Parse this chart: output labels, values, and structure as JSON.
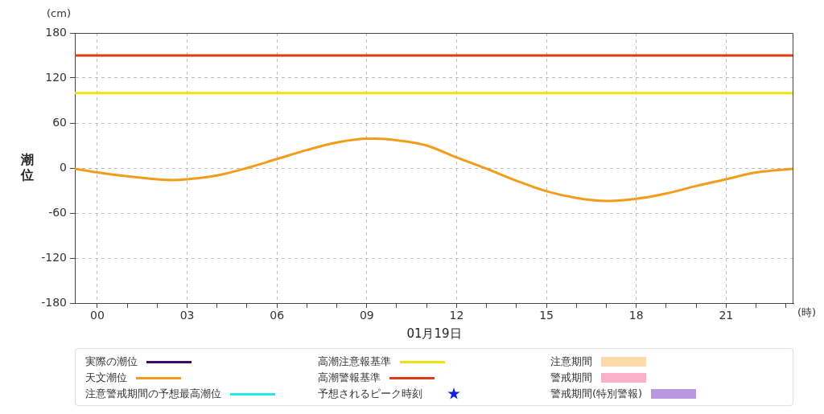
{
  "chart_data": {
    "type": "line",
    "ylabel": "潮位",
    "xlabel": "01月19日",
    "annotations": [
      "(cm)",
      "(時)"
    ],
    "x": [
      -0.75,
      0,
      1,
      2,
      2.5,
      3,
      4,
      5,
      6,
      7,
      8,
      9,
      9.3,
      10,
      11,
      12,
      13,
      14,
      15,
      16,
      17,
      18,
      19,
      20,
      21,
      22,
      23.25
    ],
    "xlim": [
      -0.75,
      23.25
    ],
    "xticks": [
      {
        "value": 0,
        "label": "00"
      },
      {
        "value": 1,
        "label": null
      },
      {
        "value": 2,
        "label": null
      },
      {
        "value": 3,
        "label": "03"
      },
      {
        "value": 4,
        "label": null
      },
      {
        "value": 5,
        "label": null
      },
      {
        "value": 6,
        "label": "06"
      },
      {
        "value": 7,
        "label": null
      },
      {
        "value": 8,
        "label": null
      },
      {
        "value": 9,
        "label": "09"
      },
      {
        "value": 10,
        "label": null
      },
      {
        "value": 11,
        "label": null
      },
      {
        "value": 12,
        "label": "12"
      },
      {
        "value": 13,
        "label": null
      },
      {
        "value": 14,
        "label": null
      },
      {
        "value": 15,
        "label": "15"
      },
      {
        "value": 16,
        "label": null
      },
      {
        "value": 17,
        "label": null
      },
      {
        "value": 18,
        "label": "18"
      },
      {
        "value": 19,
        "label": null
      },
      {
        "value": 20,
        "label": null
      },
      {
        "value": 21,
        "label": "21"
      },
      {
        "value": 22,
        "label": null
      },
      {
        "value": 23,
        "label": null
      }
    ],
    "ylim": [
      -180,
      180
    ],
    "yticks": [
      -180,
      -120,
      -60,
      0,
      60,
      120,
      180
    ],
    "grid": true,
    "legend": "bottom",
    "marker": "none",
    "series": [
      {
        "name": "実際の潮位",
        "color": "#3a0a6e",
        "values": [
          null,
          null,
          null,
          null,
          null,
          null,
          null,
          null,
          null,
          null,
          null,
          null,
          null,
          null,
          null,
          null,
          null,
          null,
          null,
          null,
          null,
          null,
          null,
          null,
          null,
          null,
          null
        ]
      },
      {
        "name": "天文潮位",
        "color": "#f39c1a",
        "values": [
          -1,
          -6,
          -11,
          -15,
          -16,
          -15,
          -10,
          0,
          12,
          24,
          34,
          39,
          39,
          37,
          30,
          14,
          -1,
          -17,
          -31,
          -40,
          -44,
          -41,
          -34,
          -24,
          -15,
          -6,
          -1
        ]
      },
      {
        "name": "注意警戒期間の予想最高潮位",
        "color": "#22e6f0",
        "values": [
          null,
          null,
          null,
          null,
          null,
          null,
          null,
          null,
          null,
          null,
          null,
          null,
          null,
          null,
          null,
          null,
          null,
          null,
          null,
          null,
          null,
          null,
          null,
          null,
          null,
          null,
          null
        ]
      },
      {
        "name": "高潮注意報基準",
        "color": "#f0e010",
        "values": [
          100,
          100,
          100,
          100,
          100,
          100,
          100,
          100,
          100,
          100,
          100,
          100,
          100,
          100,
          100,
          100,
          100,
          100,
          100,
          100,
          100,
          100,
          100,
          100,
          100,
          100,
          100
        ]
      },
      {
        "name": "高潮警報基準",
        "color": "#e03a10",
        "values": [
          150,
          150,
          150,
          150,
          150,
          150,
          150,
          150,
          150,
          150,
          150,
          150,
          150,
          150,
          150,
          150,
          150,
          150,
          150,
          150,
          150,
          150,
          150,
          150,
          150,
          150,
          150
        ]
      },
      {
        "name": "予想されるピーク時刻",
        "color": "#1020e0",
        "type": "scatter",
        "marker": "star",
        "values": [
          null,
          null,
          null,
          null,
          null,
          null,
          null,
          null,
          null,
          null,
          null,
          null,
          null,
          null,
          null,
          null,
          null,
          null,
          null,
          null,
          null,
          null,
          null,
          null,
          null,
          null,
          null
        ]
      },
      {
        "name": "注意期間",
        "color": "#fcd9a8",
        "type": "area",
        "values": [
          null,
          null,
          null,
          null,
          null,
          null,
          null,
          null,
          null,
          null,
          null,
          null,
          null,
          null,
          null,
          null,
          null,
          null,
          null,
          null,
          null,
          null,
          null,
          null,
          null,
          null,
          null
        ]
      },
      {
        "name": "警戒期間",
        "color": "#fab0c8",
        "type": "area",
        "values": [
          null,
          null,
          null,
          null,
          null,
          null,
          null,
          null,
          null,
          null,
          null,
          null,
          null,
          null,
          null,
          null,
          null,
          null,
          null,
          null,
          null,
          null,
          null,
          null,
          null,
          null,
          null
        ]
      },
      {
        "name": "警戒期間(特別警報)",
        "color": "#b898e0",
        "type": "area",
        "values": [
          null,
          null,
          null,
          null,
          null,
          null,
          null,
          null,
          null,
          null,
          null,
          null,
          null,
          null,
          null,
          null,
          null,
          null,
          null,
          null,
          null,
          null,
          null,
          null,
          null,
          null,
          null
        ]
      }
    ]
  }
}
